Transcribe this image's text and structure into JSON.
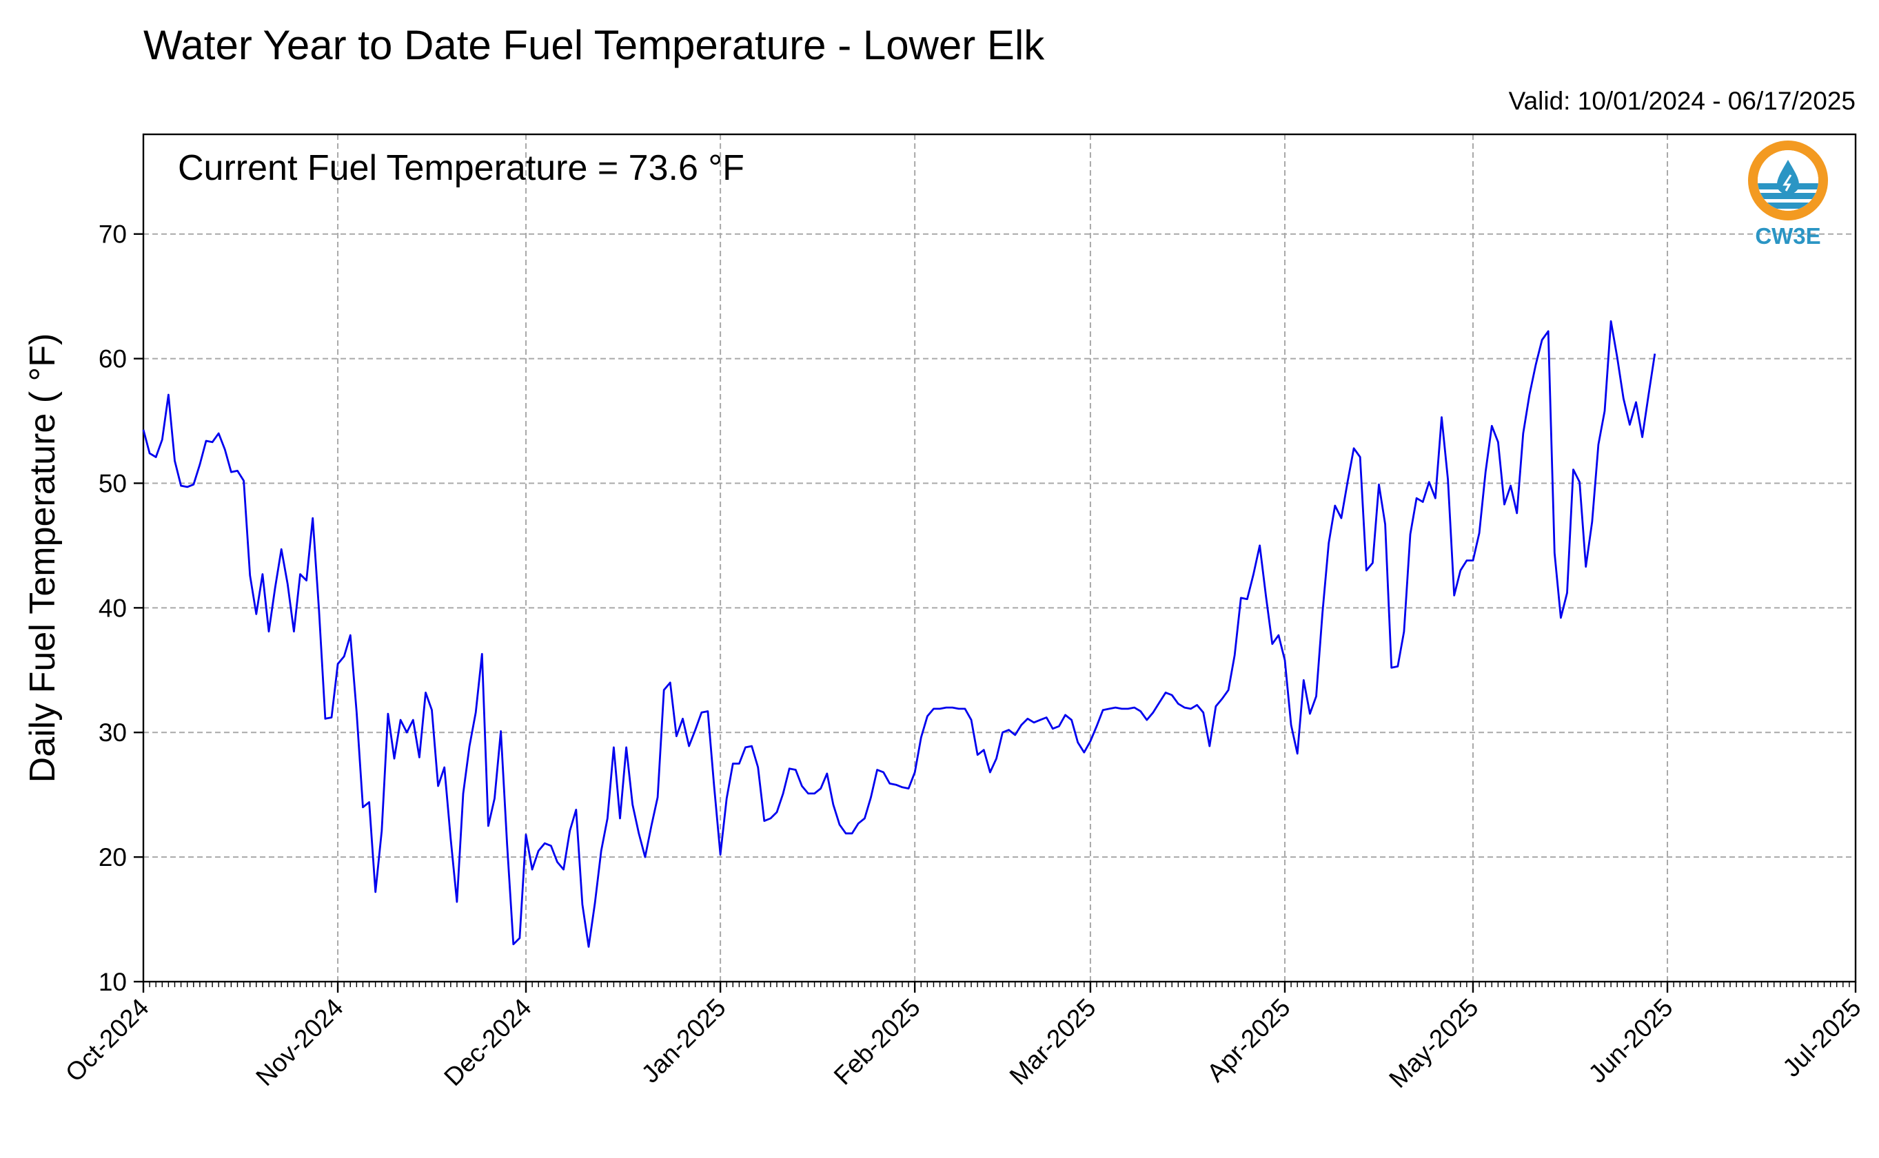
{
  "chart_data": {
    "type": "line",
    "title": "Water Year to Date Fuel Temperature - Lower Elk",
    "subtitle": "Valid: 10/01/2024 - 06/17/2025",
    "annotation": "Current Fuel Temperature = 73.6  °F",
    "ylabel": "Daily Fuel Temperature ( °F)",
    "xlabel": "",
    "ylim": [
      10,
      78
    ],
    "xlim": [
      "2024-10-01",
      "2025-07-01"
    ],
    "yticks": [
      10,
      20,
      30,
      40,
      50,
      60,
      70
    ],
    "xticks": [
      {
        "date": "2024-10-01",
        "label": "Oct-2024"
      },
      {
        "date": "2024-11-01",
        "label": "Nov-2024"
      },
      {
        "date": "2024-12-01",
        "label": "Dec-2024"
      },
      {
        "date": "2025-01-01",
        "label": "Jan-2025"
      },
      {
        "date": "2025-02-01",
        "label": "Feb-2025"
      },
      {
        "date": "2025-03-01",
        "label": "Mar-2025"
      },
      {
        "date": "2025-04-01",
        "label": "Apr-2025"
      },
      {
        "date": "2025-05-01",
        "label": "May-2025"
      },
      {
        "date": "2025-06-01",
        "label": "Jun-2025"
      },
      {
        "date": "2025-07-01",
        "label": "Jul-2025"
      }
    ],
    "grid": true,
    "line_color": "#0000ee",
    "series": [
      {
        "x_start": "2024-10-01",
        "x_step_days": 1,
        "values": [
          54.3,
          52.4,
          52.1,
          53.5,
          57.1,
          51.8,
          49.8,
          49.7,
          49.9,
          51.5,
          53.4,
          53.3,
          54.0,
          52.7,
          50.9,
          51.0,
          50.2,
          42.6,
          39.5,
          42.7,
          38.1,
          41.6,
          44.7,
          41.9,
          38.1,
          42.7,
          42.2,
          47.2,
          39.8,
          31.1,
          31.2,
          35.5,
          36.1,
          37.8,
          31.6,
          24.0,
          24.4,
          17.2,
          22.1,
          31.5,
          27.9,
          31.0,
          30.0,
          31.0,
          28.0,
          33.2,
          31.8,
          25.7,
          27.2,
          21.5,
          16.4,
          25.1,
          28.9,
          31.6,
          36.3,
          22.5,
          24.7,
          30.1,
          21.0,
          13.0,
          13.5,
          21.8,
          19.0,
          20.5,
          21.1,
          20.9,
          19.6,
          19.0,
          22.1,
          23.8,
          16.2,
          12.8,
          16.3,
          20.5,
          23.1,
          28.8,
          23.1,
          28.8,
          24.2,
          21.9,
          20.0,
          22.5,
          24.8,
          33.4,
          34.0,
          29.7,
          31.1,
          28.9,
          30.2,
          31.6,
          31.7,
          25.7,
          20.2,
          24.7,
          27.5,
          27.5,
          28.8,
          28.9,
          27.2,
          22.9,
          23.1,
          23.6,
          25.1,
          27.1,
          27.0,
          25.7,
          25.1,
          25.1,
          25.5,
          26.7,
          24.2,
          22.6,
          21.9,
          21.9,
          22.7,
          23.1,
          24.8,
          27.0,
          26.8,
          25.9,
          25.8,
          25.6,
          25.5,
          26.8,
          29.6,
          31.3,
          31.9,
          31.9,
          32.0,
          32.0,
          31.9,
          31.9,
          31.0,
          28.2,
          28.6,
          26.8,
          27.9,
          30.0,
          30.2,
          29.8,
          30.6,
          31.1,
          30.8,
          31.0,
          31.2,
          30.3,
          30.5,
          31.4,
          31.0,
          29.2,
          28.4,
          29.3,
          30.5,
          31.8,
          31.9,
          32.0,
          31.9,
          31.9,
          32.0,
          31.7,
          31.0,
          31.6,
          32.4,
          33.2,
          33.0,
          32.3,
          32.0,
          31.9,
          32.2,
          31.6,
          28.9,
          32.1,
          32.7,
          33.4,
          36.2,
          40.8,
          40.7,
          42.7,
          45.0,
          40.9,
          37.1,
          37.8,
          35.8,
          30.6,
          28.3,
          34.2,
          31.5,
          32.9,
          39.6,
          45.2,
          48.2,
          47.2,
          50.1,
          52.8,
          52.1,
          43.0,
          43.6,
          49.9,
          46.7,
          35.2,
          35.3,
          38.1,
          45.9,
          48.8,
          48.5,
          50.1,
          48.8,
          55.3,
          50.3,
          41.0,
          43.0,
          43.8,
          43.8,
          46.0,
          50.9,
          54.6,
          53.3,
          48.3,
          49.8,
          47.6,
          54.0,
          57.1,
          59.5,
          61.5,
          62.2,
          44.4,
          39.2,
          41.2,
          51.1,
          50.1,
          43.3,
          46.9,
          53.1,
          55.8,
          63.0,
          60.1,
          56.8,
          54.7,
          56.5,
          53.7,
          57.1,
          60.4
        ]
      }
    ]
  },
  "logo": {
    "text": "CW3E",
    "orange": "#f39a21",
    "blue": "#2b95c4"
  }
}
